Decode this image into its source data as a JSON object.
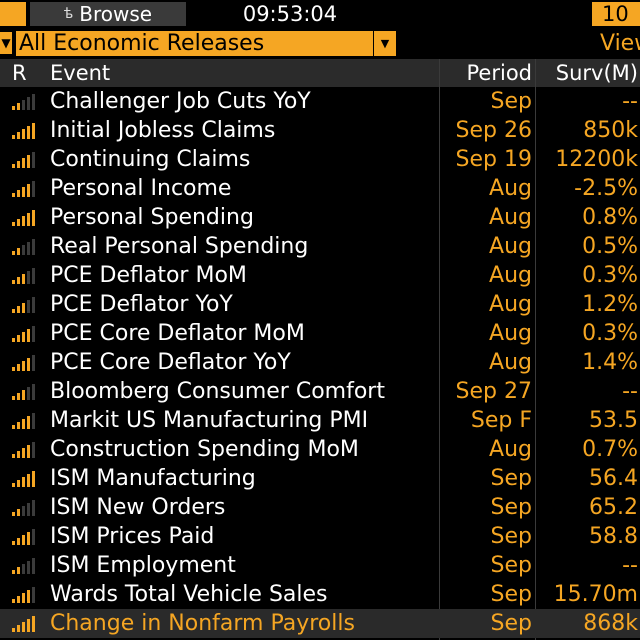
{
  "topbar": {
    "browse_label": "Browse",
    "browse_icon": "lock-icon",
    "time": "09:53:04",
    "right_label": "10"
  },
  "filter": {
    "selected": "All Economic Releases",
    "view_label": "View"
  },
  "columns": {
    "r": "R",
    "event": "Event",
    "period": "Period",
    "survey": "Surv(M)"
  },
  "rows": [
    {
      "event": "Challenger Job Cuts YoY",
      "period": "Sep",
      "survey": "--",
      "relevance": 2
    },
    {
      "event": "Initial Jobless Claims",
      "period": "Sep 26",
      "survey": "850k",
      "relevance": 5
    },
    {
      "event": "Continuing Claims",
      "period": "Sep 19",
      "survey": "12200k",
      "relevance": 4
    },
    {
      "event": "Personal Income",
      "period": "Aug",
      "survey": "-2.5%",
      "relevance": 4
    },
    {
      "event": "Personal Spending",
      "period": "Aug",
      "survey": "0.8%",
      "relevance": 5
    },
    {
      "event": "Real Personal Spending",
      "period": "Aug",
      "survey": "0.5%",
      "relevance": 2
    },
    {
      "event": "PCE Deflator MoM",
      "period": "Aug",
      "survey": "0.3%",
      "relevance": 3
    },
    {
      "event": "PCE Deflator YoY",
      "period": "Aug",
      "survey": "1.2%",
      "relevance": 3
    },
    {
      "event": "PCE Core Deflator MoM",
      "period": "Aug",
      "survey": "0.3%",
      "relevance": 4
    },
    {
      "event": "PCE Core Deflator YoY",
      "period": "Aug",
      "survey": "1.4%",
      "relevance": 4
    },
    {
      "event": "Bloomberg Consumer Comfort",
      "period": "Sep 27",
      "survey": "--",
      "relevance": 3
    },
    {
      "event": "Markit US Manufacturing PMI",
      "period": "Sep F",
      "survey": "53.5",
      "relevance": 4
    },
    {
      "event": "Construction Spending MoM",
      "period": "Aug",
      "survey": "0.7%",
      "relevance": 4
    },
    {
      "event": "ISM Manufacturing",
      "period": "Sep",
      "survey": "56.4",
      "relevance": 5
    },
    {
      "event": "ISM New Orders",
      "period": "Sep",
      "survey": "65.2",
      "relevance": 2
    },
    {
      "event": "ISM Prices Paid",
      "period": "Sep",
      "survey": "58.8",
      "relevance": 4
    },
    {
      "event": "ISM Employment",
      "period": "Sep",
      "survey": "--",
      "relevance": 2
    },
    {
      "event": "Wards Total Vehicle Sales",
      "period": "Sep",
      "survey": "15.70m",
      "relevance": 4
    },
    {
      "event": "Change in Nonfarm Payrolls",
      "period": "Sep",
      "survey": "868k",
      "relevance": 5,
      "selected": true
    }
  ],
  "colors": {
    "accent": "#f5a623",
    "background": "#000000",
    "header_bg": "#2b2b2b",
    "text": "#ffffff"
  }
}
